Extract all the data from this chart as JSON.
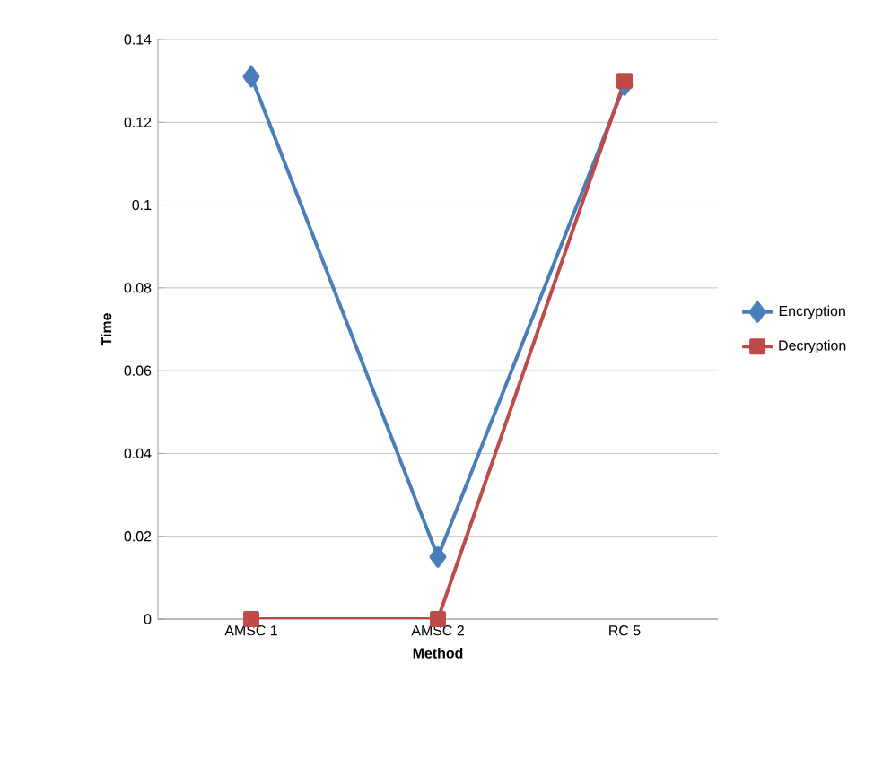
{
  "chart_data": {
    "type": "line",
    "xlabel": "Method",
    "ylabel": "Time",
    "categories": [
      "AMSC 1",
      "AMSC 2",
      "RC 5"
    ],
    "series": [
      {
        "name": "Encryption",
        "color": "#4a7ebb",
        "marker": "diamond",
        "values": [
          0.131,
          0.015,
          0.129
        ]
      },
      {
        "name": "Decryption",
        "color": "#be4b48",
        "marker": "square",
        "values": [
          0,
          0,
          0.13
        ]
      }
    ],
    "ylim": [
      0,
      0.14
    ],
    "yticks": [
      0,
      0.02,
      0.04,
      0.06,
      0.08,
      0.1,
      0.12,
      0.14
    ],
    "grid": "y",
    "legend": "right"
  }
}
